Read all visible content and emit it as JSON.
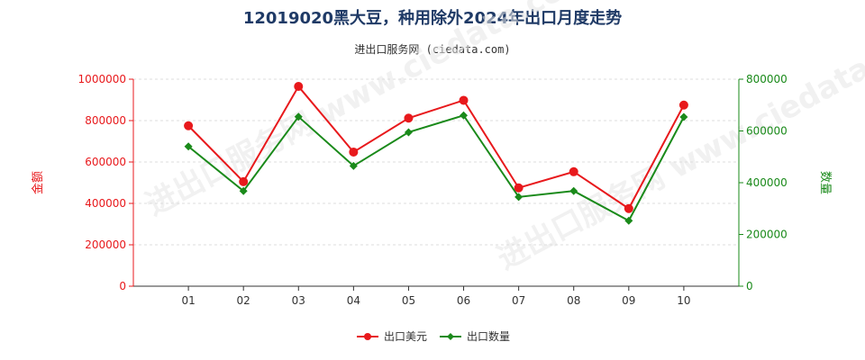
{
  "title": "12019020黑大豆，种用除外2024年出口月度走势",
  "subtitle": "进出口服务网 (ciedata.com)",
  "watermark": "进出口服务网 www.ciedata.com",
  "colors": {
    "left_axis": "#e8191c",
    "right_axis": "#1a8a1a",
    "series_amount": "#e8191c",
    "series_quantity": "#1a8a1a",
    "title": "#1f3a66"
  },
  "chart_data": {
    "type": "line",
    "categories": [
      "01",
      "02",
      "03",
      "04",
      "05",
      "06",
      "07",
      "08",
      "09",
      "10"
    ],
    "series": [
      {
        "name": "出口美元",
        "axis": "left",
        "values": [
          775000,
          505000,
          965000,
          648000,
          812000,
          898000,
          475000,
          553000,
          375000,
          875000
        ]
      },
      {
        "name": "出口数量",
        "axis": "right",
        "values": [
          540000,
          368000,
          655000,
          465000,
          595000,
          660000,
          345000,
          368000,
          253000,
          654000
        ]
      }
    ],
    "left_axis": {
      "label": "金额",
      "ylim": [
        0,
        1000000
      ],
      "ticks": [
        "0",
        "200000",
        "400000",
        "600000",
        "800000",
        "1000000"
      ]
    },
    "right_axis": {
      "label": "数量",
      "ylim": [
        0,
        800000
      ],
      "ticks": [
        "0",
        "200000",
        "400000",
        "600000",
        "800000"
      ]
    },
    "grid": true,
    "legend_position": "bottom-center"
  }
}
